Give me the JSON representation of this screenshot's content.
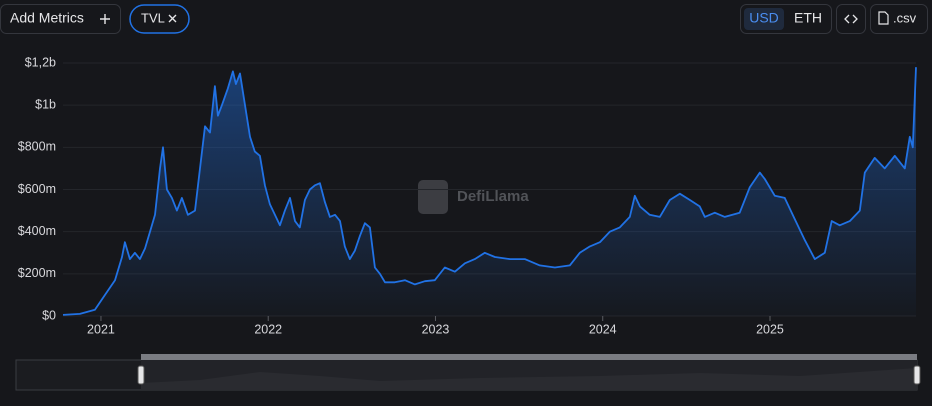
{
  "ui": {
    "add_metrics": "Add Metrics",
    "currency_usd": "USD",
    "currency_eth": "ETH",
    "csv": ".csv",
    "watermark": "DefiLlama"
  },
  "chart_data": {
    "type": "area",
    "x": [
      2020.773,
      2020.874,
      2020.964,
      2021.024,
      2021.084,
      2021.126,
      2021.143,
      2021.173,
      2021.203,
      2021.233,
      2021.263,
      2021.293,
      2021.323,
      2021.353,
      2021.371,
      2021.394,
      2021.424,
      2021.454,
      2021.484,
      2021.52,
      2021.562,
      2021.592,
      2021.622,
      2021.652,
      2021.681,
      2021.699,
      2021.723,
      2021.759,
      2021.789,
      2021.807,
      2021.831,
      2021.861,
      2021.891,
      2021.92,
      2021.95,
      2021.98,
      2022.01,
      2022.04,
      2022.07,
      2022.1,
      2022.13,
      2022.16,
      2022.189,
      2022.219,
      2022.249,
      2022.279,
      2022.309,
      2022.339,
      2022.369,
      2022.399,
      2022.429,
      2022.458,
      2022.488,
      2022.518,
      2022.548,
      2022.578,
      2022.608,
      2022.638,
      2022.668,
      2022.698,
      2022.757,
      2022.817,
      2022.877,
      2022.937,
      2022.996,
      2023.056,
      2023.116,
      2023.176,
      2023.235,
      2023.295,
      2023.355,
      2023.445,
      2023.534,
      2023.624,
      2023.714,
      2023.803,
      2023.863,
      2023.923,
      2023.983,
      2024.042,
      2024.102,
      2024.162,
      2024.192,
      2024.222,
      2024.281,
      2024.341,
      2024.401,
      2024.461,
      2024.521,
      2024.58,
      2024.61,
      2024.67,
      2024.73,
      2024.819,
      2024.879,
      2024.939,
      2024.969,
      2025.029,
      2025.088,
      2025.148,
      2025.208,
      2025.268,
      2025.328,
      2025.369,
      2025.417,
      2025.477,
      2025.537,
      2025.567,
      2025.626,
      2025.686,
      2025.746,
      2025.806,
      2025.836,
      2025.854,
      2025.873
    ],
    "series": [
      {
        "name": "TVL",
        "color": "#2172e5",
        "values": [
          5000000,
          10000000,
          30000000,
          100000000,
          170000000,
          280000000,
          350000000,
          270000000,
          300000000,
          270000000,
          320000000,
          400000000,
          480000000,
          700000000,
          800000000,
          600000000,
          560000000,
          500000000,
          560000000,
          480000000,
          500000000,
          700000000,
          900000000,
          870000000,
          1090000000,
          950000000,
          1000000000,
          1080000000,
          1160000000,
          1100000000,
          1150000000,
          1000000000,
          850000000,
          780000000,
          760000000,
          620000000,
          530000000,
          480000000,
          430000000,
          500000000,
          560000000,
          450000000,
          420000000,
          550000000,
          600000000,
          620000000,
          630000000,
          540000000,
          470000000,
          480000000,
          450000000,
          330000000,
          270000000,
          310000000,
          380000000,
          440000000,
          420000000,
          230000000,
          200000000,
          160000000,
          160000000,
          170000000,
          150000000,
          165000000,
          170000000,
          230000000,
          210000000,
          250000000,
          270000000,
          300000000,
          280000000,
          270000000,
          270000000,
          240000000,
          230000000,
          240000000,
          300000000,
          330000000,
          350000000,
          400000000,
          420000000,
          470000000,
          570000000,
          520000000,
          480000000,
          470000000,
          550000000,
          580000000,
          550000000,
          520000000,
          470000000,
          490000000,
          470000000,
          490000000,
          610000000,
          680000000,
          650000000,
          570000000,
          560000000,
          460000000,
          360000000,
          270000000,
          300000000,
          450000000,
          430000000,
          450000000,
          500000000,
          680000000,
          750000000,
          700000000,
          760000000,
          700000000,
          850000000,
          800000000,
          1180000000
        ]
      }
    ],
    "xlim": [
      2020.773,
      2025.873
    ],
    "xticks": [
      2021,
      2022,
      2023,
      2024,
      2025
    ],
    "ylim": [
      0,
      1200000000
    ],
    "yticks": [
      {
        "value": 0,
        "label": "$0"
      },
      {
        "value": 200000000,
        "label": "$200m"
      },
      {
        "value": 400000000,
        "label": "$400m"
      },
      {
        "value": 600000000,
        "label": "$600m"
      },
      {
        "value": 800000000,
        "label": "$800m"
      },
      {
        "value": 1000000000,
        "label": "$1b"
      },
      {
        "value": 1200000000,
        "label": "$1,2b"
      }
    ],
    "grid": true
  }
}
